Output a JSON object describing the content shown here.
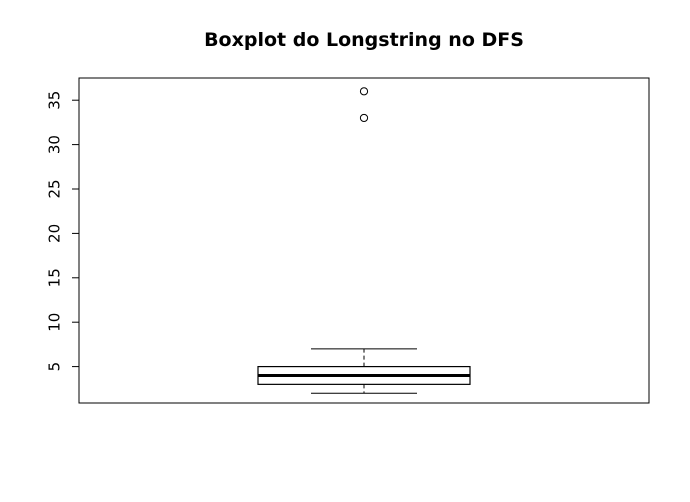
{
  "chart_data": {
    "type": "boxplot",
    "title": "Boxplot do Longstring no DFS",
    "xlabel": "",
    "ylabel": "",
    "ylim": [
      0.9,
      37.5
    ],
    "yticks": [
      5,
      10,
      15,
      20,
      25,
      30,
      35
    ],
    "ytick_labels": [
      "5",
      "10",
      "15",
      "20",
      "25",
      "30",
      "35"
    ],
    "box": {
      "whisker_low": 2,
      "q1": 3,
      "median": 4,
      "q3": 5,
      "whisker_high": 7
    },
    "outliers": [
      33,
      36
    ],
    "grid": false,
    "legend": "none"
  }
}
